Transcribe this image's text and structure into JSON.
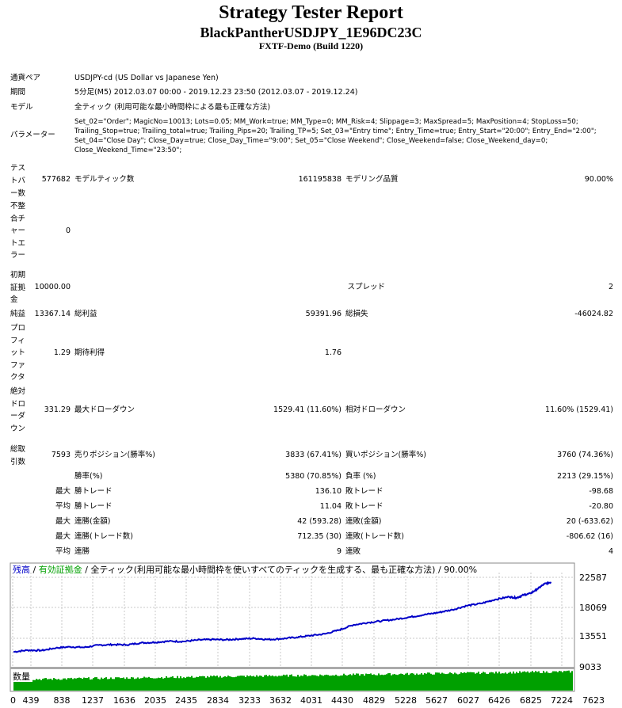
{
  "header": {
    "title": "Strategy Tester Report",
    "ea_name": "BlackPantherUSDJPY_1E96DC23C",
    "server": "FXTF-Demo (Build 1220)"
  },
  "info": {
    "symbol_label": "通貨ペア",
    "symbol_value": "USDJPY-cd (US Dollar vs Japanese Yen)",
    "period_label": "期間",
    "period_value": "5分足(M5) 2012.03.07 00:00 - 2019.12.23 23:50 (2012.03.07 - 2019.12.24)",
    "model_label": "モデル",
    "model_value": "全ティック (利用可能な最小時間枠による最も正確な方法)",
    "params_label": "パラメーター",
    "params_value": "Set_02=\"Order\"; MagicNo=10013; Lots=0.05; MM_Work=true; MM_Type=0; MM_Risk=4; Slippage=3; MaxSpread=5; MaxPosition=4; StopLoss=50; Trailing_Stop=true; Trailing_total=true; Trailing_Pips=20; Trailing_TP=5; Set_03=\"Entry time\"; Entry_Time=true; Entry_Start=\"20:00\"; Entry_End=\"2:00\"; Set_04=\"Close Day\"; Close_Day=true; Close_Day_Time=\"9:00\"; Set_05=\"Close Weekend\"; Close_Weekend=false; Close_Weekend_day=0; Close_Weekend_Time=\"23:50\";"
  },
  "stats": {
    "bars_label": "テストバー数",
    "bars_value": "577682",
    "ticks_label": "モデルティック数",
    "ticks_value": "161195838",
    "quality_label": "モデリング品質",
    "quality_value": "90.00%",
    "errors_label": "不整合チャートエラー",
    "errors_value": "0",
    "deposit_label": "初期証拠金",
    "deposit_value": "10000.00",
    "spread_label": "スプレッド",
    "spread_value": "2",
    "net_label": "純益",
    "net_value": "13367.14",
    "gross_profit_label": "総利益",
    "gross_profit_value": "59391.96",
    "gross_loss_label": "総損失",
    "gross_loss_value": "-46024.82",
    "pf_label": "プロフィットファクタ",
    "pf_value": "1.29",
    "expected_label": "期待利得",
    "expected_value": "1.76",
    "abs_dd_label": "絶対ドローダウン",
    "abs_dd_value": "331.29",
    "max_dd_label": "最大ドローダウン",
    "max_dd_value": "1529.41 (11.60%)",
    "rel_dd_label": "相対ドローダウン",
    "rel_dd_value": "11.60% (1529.41)",
    "trades_label": "総取引数",
    "trades_value": "7593",
    "short_label": "売りポジション(勝率%)",
    "short_value": "3833 (67.41%)",
    "long_label": "買いポジション(勝率%)",
    "long_value": "3760 (74.36%)",
    "win_label": "勝率(%)",
    "win_value": "5380 (70.85%)",
    "loss_label": "負率 (%)",
    "loss_value": "2213 (29.15%)",
    "max_label": "最大",
    "avg_label": "平均",
    "win_trade_label": "勝トレード",
    "loss_trade_label": "敗トレード",
    "max_win_trade": "136.10",
    "max_loss_trade": "-98.68",
    "avg_win_trade": "11.04",
    "avg_loss_trade": "-20.80",
    "cons_win_amt_label": "連勝(金額)",
    "cons_win_amt": "42 (593.28)",
    "cons_loss_amt_label": "連敗(金額)",
    "cons_loss_amt": "20 (-633.62)",
    "cons_win_cnt_label": "連勝(トレード数)",
    "cons_win_cnt": "712.35 (30)",
    "cons_loss_cnt_label": "連敗(トレード数)",
    "cons_loss_cnt": "-806.62 (16)",
    "avg_win_streak_label": "連勝",
    "avg_win_streak": "9",
    "avg_loss_streak_label": "連敗",
    "avg_loss_streak": "4"
  },
  "chart_data": {
    "type": "line",
    "legend": [
      {
        "text": "残高",
        "color": "#0000c8"
      },
      {
        "text": " / ",
        "color": "#000000"
      },
      {
        "text": "有効証拠金",
        "color": "#00a000"
      },
      {
        "text": " / 全ティック(利用可能な最小時間枠を使いすべてのティックを生成する、最も正確な方法) / 90.00%",
        "color": "#000000"
      }
    ],
    "volume_label": "数量",
    "x_ticks": [
      "0",
      "439",
      "838",
      "1237",
      "1636",
      "2035",
      "2435",
      "2834",
      "3233",
      "3632",
      "4031",
      "4430",
      "4829",
      "5228",
      "5627",
      "6027",
      "6426",
      "6825",
      "7224",
      "7623"
    ],
    "y_ticks": [
      "22587",
      "18069",
      "13551",
      "9033"
    ],
    "ylim": [
      9033,
      23400
    ],
    "xlim": [
      0,
      7900
    ],
    "series": [
      {
        "name": "残高",
        "color": "#0000c8",
        "x": [
          0,
          200,
          400,
          600,
          800,
          1000,
          1200,
          1400,
          1600,
          1800,
          2000,
          2200,
          2400,
          2600,
          2800,
          3000,
          3200,
          3400,
          3600,
          3800,
          4000,
          4200,
          4400,
          4600,
          4800,
          5000,
          5200,
          5400,
          5600,
          5800,
          6000,
          6200,
          6400,
          6600,
          6800,
          7000,
          7100,
          7200,
          7300,
          7400,
          7500,
          7593
        ],
        "values": [
          10000,
          10300,
          10250,
          10700,
          10900,
          10800,
          11200,
          11300,
          11250,
          11600,
          11700,
          11900,
          11850,
          12100,
          12200,
          12150,
          12300,
          12400,
          12200,
          12350,
          12600,
          12900,
          13200,
          13900,
          14800,
          15200,
          15500,
          15800,
          16200,
          16600,
          17000,
          17500,
          18200,
          18600,
          19300,
          19800,
          19600,
          20100,
          20400,
          21200,
          22100,
          22400
        ]
      }
    ],
    "volume_color": "#00a000"
  }
}
